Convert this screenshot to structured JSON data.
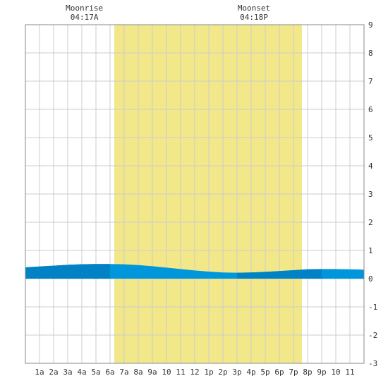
{
  "chart_data": {
    "type": "area",
    "title": "",
    "xlabel": "",
    "ylabel": "",
    "x_tick_labels": [
      "1a",
      "2a",
      "3a",
      "4a",
      "5a",
      "6a",
      "7a",
      "8a",
      "9a",
      "10",
      "11",
      "12",
      "1p",
      "2p",
      "3p",
      "4p",
      "5p",
      "6p",
      "7p",
      "8p",
      "9p",
      "10",
      "11"
    ],
    "xlim": [
      0,
      24
    ],
    "ylim": [
      -3,
      9
    ],
    "y_ticks": [
      "9",
      "8",
      "7",
      "6",
      "5",
      "4",
      "3",
      "2",
      "1",
      "0",
      "-1",
      "-2",
      "-3"
    ],
    "grid": true,
    "daylight_band": {
      "start_hour": 6.3,
      "end_hour": 19.6,
      "color": "#f2e88a"
    },
    "moon_events": [
      {
        "label": "Moonrise",
        "time": "04:17A",
        "hour": 4.28
      },
      {
        "label": "Moonset",
        "time": "04:18P",
        "hour": 16.3
      }
    ],
    "series": [
      {
        "x": [
          0,
          1,
          2,
          3,
          4,
          5,
          6,
          7,
          8,
          9,
          10,
          11,
          12,
          13,
          14,
          15,
          16,
          17,
          18,
          19,
          20,
          21,
          22,
          23,
          24
        ],
        "values": [
          0.4,
          0.43,
          0.46,
          0.49,
          0.51,
          0.52,
          0.52,
          0.51,
          0.48,
          0.44,
          0.39,
          0.34,
          0.29,
          0.25,
          0.22,
          0.21,
          0.22,
          0.24,
          0.27,
          0.3,
          0.33,
          0.34,
          0.34,
          0.33,
          0.32
        ]
      }
    ],
    "colors": {
      "tide_fill": "#0096dc",
      "tide_fill_dark": "#0082c4",
      "grid": "#cccccc",
      "axis": "#888888"
    }
  }
}
